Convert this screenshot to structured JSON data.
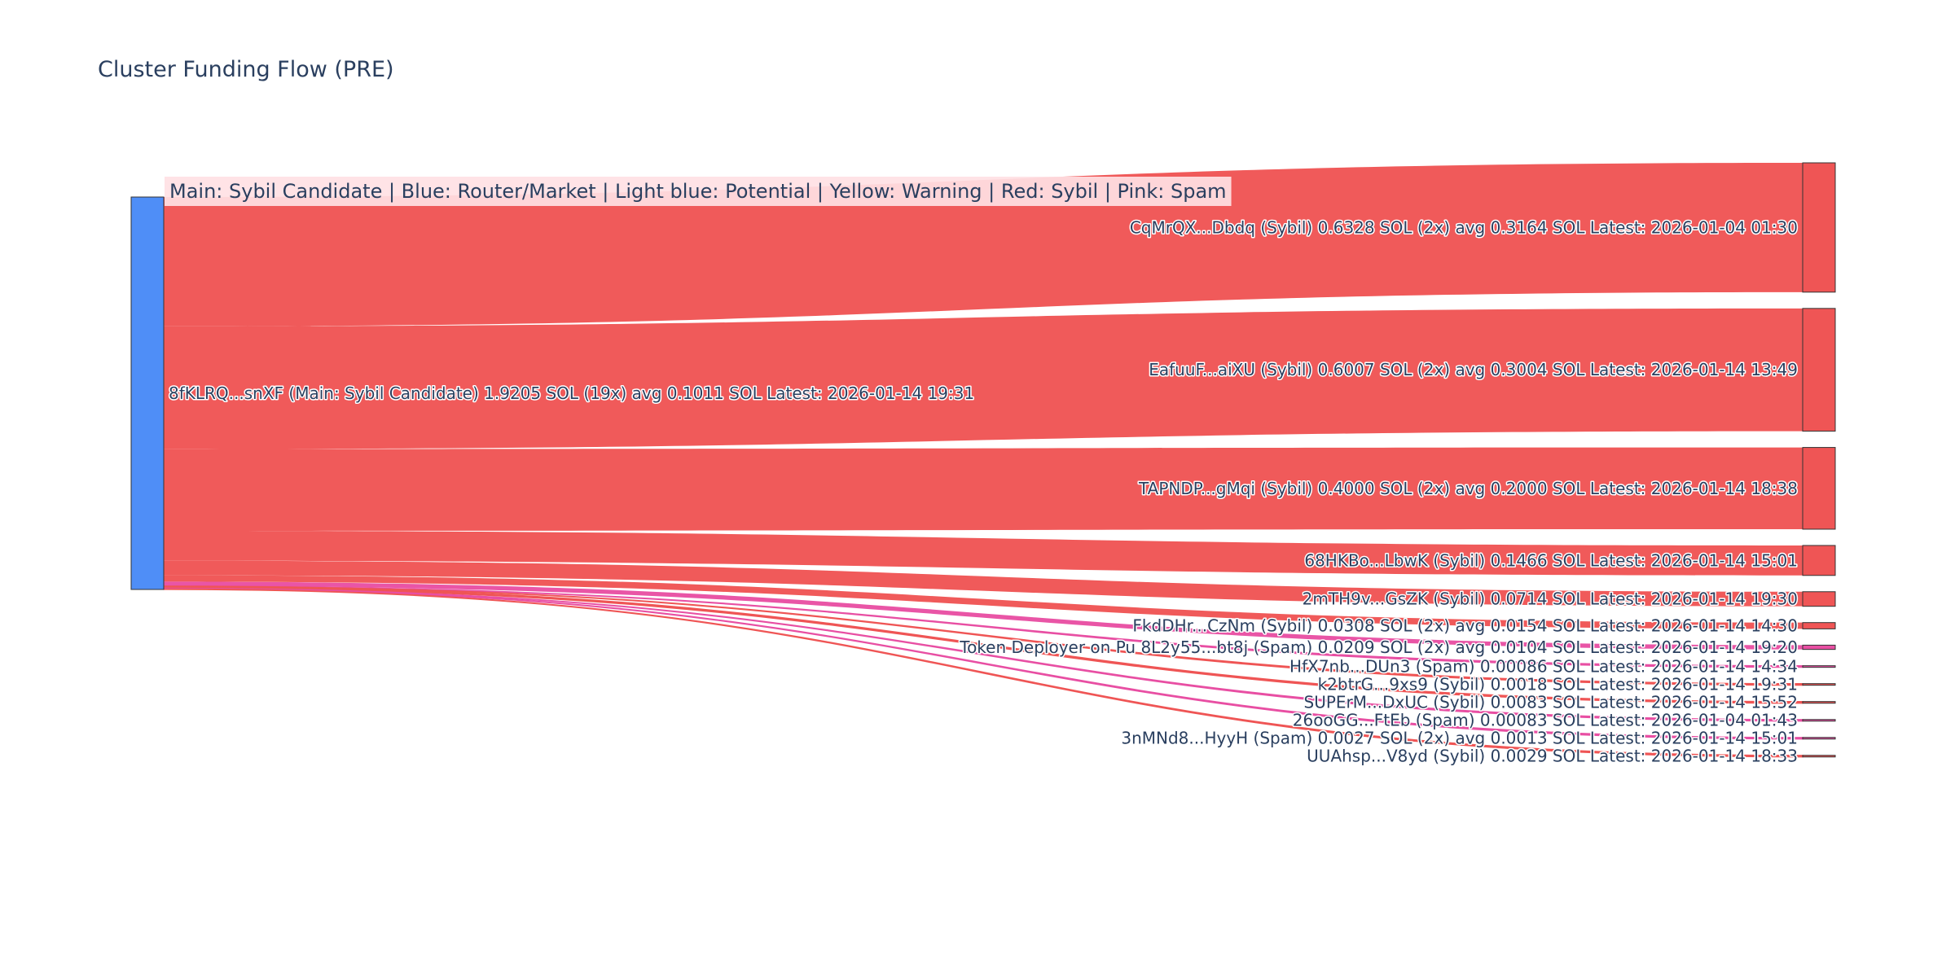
{
  "chart_data": {
    "type": "sankey",
    "title": "Cluster Funding Flow (PRE)",
    "legend_text": "Main: Sybil Candidate  |  Blue: Router/Market | Light blue: Potential | Yellow: Warning | Red: Sybil | Pink: Spam",
    "colors": {
      "source_node": "#4f8ef7",
      "sybil": "#ef5555",
      "spam": "#e84fa3",
      "node_border": "#333333",
      "legend_bg": "#ffe1e4"
    },
    "source": {
      "label": "8fKLRQ...snXF (Main: Sybil Candidate) 1.9205 SOL (19x) avg 0.1011 SOL Latest: 2026-01-14 19:31",
      "total": 1.9205
    },
    "targets": [
      {
        "label": "CqMrQX...Dbdq (Sybil) 0.6328 SOL (2x) avg 0.3164 SOL Latest: 2026-01-04 01:30",
        "value": 0.6328,
        "category": "sybil"
      },
      {
        "label": "EafuuF...aiXU (Sybil) 0.6007 SOL (2x) avg 0.3004 SOL Latest: 2026-01-14 13:49",
        "value": 0.6007,
        "category": "sybil"
      },
      {
        "label": "TAPNDP...gMqi (Sybil) 0.4000 SOL (2x) avg 0.2000 SOL Latest: 2026-01-14 18:38",
        "value": 0.4,
        "category": "sybil"
      },
      {
        "label": "68HKBo...LbwK (Sybil) 0.1466 SOL Latest: 2026-01-14 15:01",
        "value": 0.1466,
        "category": "sybil"
      },
      {
        "label": "2mTH9v...GsZK (Sybil) 0.0714 SOL Latest: 2026-01-14 19:30",
        "value": 0.0714,
        "category": "sybil"
      },
      {
        "label": "FkdDHr...CzNm (Sybil) 0.0308 SOL (2x) avg 0.0154 SOL Latest: 2026-01-14 14:30",
        "value": 0.0308,
        "category": "sybil"
      },
      {
        "label": "Token Deployer on Pu 8L2y55...bt8j (Spam) 0.0209 SOL (2x) avg 0.0104 SOL Latest: 2026-01-14 19:20",
        "value": 0.0209,
        "category": "spam"
      },
      {
        "label": "HfX7nb...DUn3 (Spam) 0.00086 SOL Latest: 2026-01-14 14:34",
        "value": 0.00086,
        "category": "spam"
      },
      {
        "label": "k2btrG...9xs9 (Sybil) 0.0018 SOL Latest: 2026-01-14 19:31",
        "value": 0.0018,
        "category": "sybil"
      },
      {
        "label": "SUPErM...DxUC (Sybil) 0.0083 SOL Latest: 2026-01-14 15:52",
        "value": 0.0083,
        "category": "sybil"
      },
      {
        "label": "26ooGG...FtEb (Spam) 0.00083 SOL Latest: 2026-01-04 01:43",
        "value": 0.00083,
        "category": "spam"
      },
      {
        "label": "3nMNd8...HyyH (Spam) 0.0027 SOL (2x) avg 0.0013 SOL Latest: 2026-01-14 15:01",
        "value": 0.0027,
        "category": "spam"
      },
      {
        "label": "UUAhsp...V8yd (Sybil) 0.0029 SOL Latest: 2026-01-14 18:33",
        "value": 0.0029,
        "category": "sybil"
      }
    ]
  }
}
